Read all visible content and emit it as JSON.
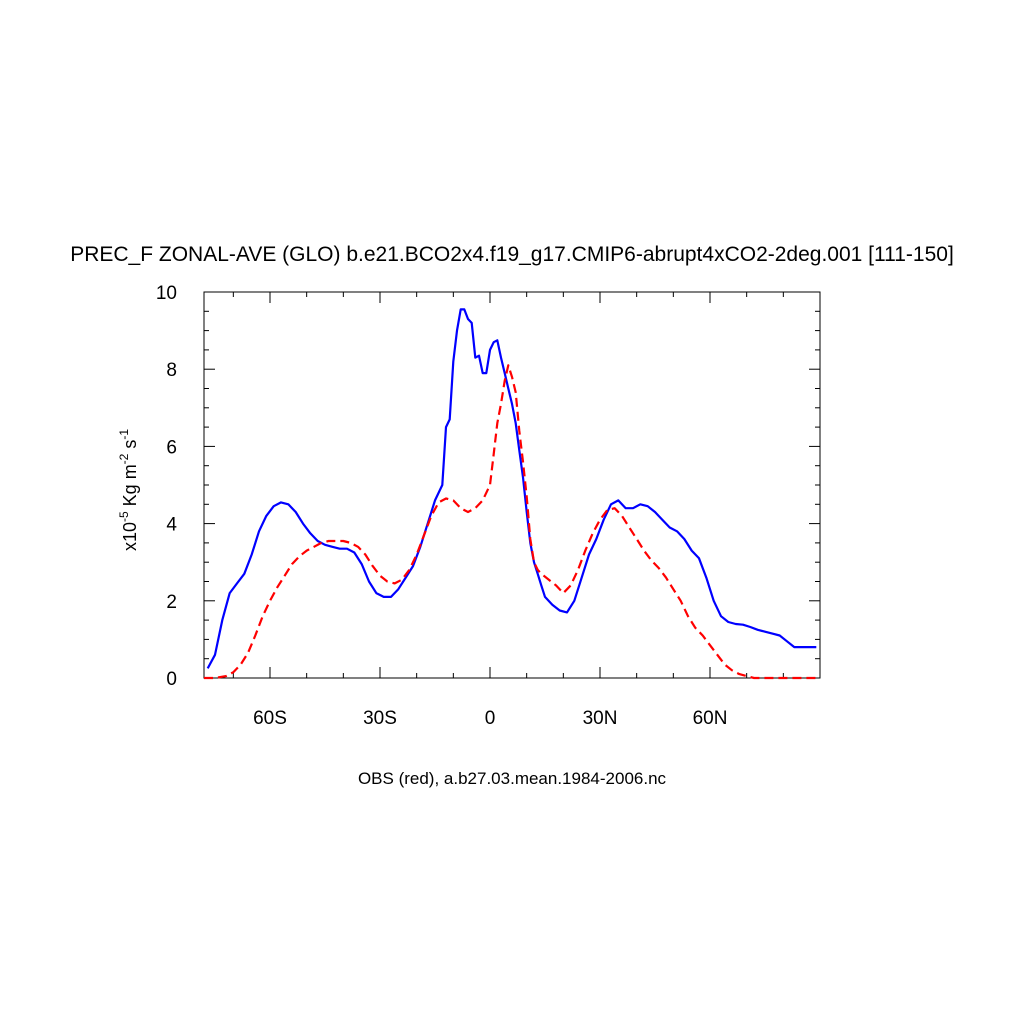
{
  "chart_data": {
    "type": "line",
    "title": "PREC_F ZONAL-AVE (GLO) b.e21.BCO2x4.f19_g17.CMIP6-abrupt4xCO2-2deg.001 [111-150]",
    "ylabel": {
      "prefix": "x10",
      "exp1": "-5",
      "mid1": " Kg m",
      "exp2": "-2",
      "mid2": " s",
      "exp3": "-1"
    },
    "footer": "OBS (red), a.b27.03.mean.1984-2006.nc",
    "xlim": [
      -78,
      90
    ],
    "ylim": [
      0,
      10
    ],
    "x_ticks": [
      {
        "value": -60,
        "label": "60S"
      },
      {
        "value": -30,
        "label": "30S"
      },
      {
        "value": 0,
        "label": "0"
      },
      {
        "value": 30,
        "label": "30N"
      },
      {
        "value": 60,
        "label": "60N"
      }
    ],
    "y_ticks": [
      {
        "value": 0,
        "label": "0"
      },
      {
        "value": 2,
        "label": "2"
      },
      {
        "value": 4,
        "label": "4"
      },
      {
        "value": 6,
        "label": "6"
      },
      {
        "value": 8,
        "label": "8"
      },
      {
        "value": 10,
        "label": "10"
      }
    ],
    "series": [
      {
        "color": "#0000ff",
        "dash": "solid",
        "x": [
          -77,
          -75,
          -73,
          -71,
          -69,
          -67,
          -65,
          -63,
          -61,
          -59,
          -57,
          -55,
          -53,
          -51,
          -49,
          -47,
          -45,
          -43,
          -41,
          -39,
          -37,
          -35,
          -33,
          -31,
          -29,
          -27,
          -25,
          -23,
          -21,
          -19,
          -17,
          -15,
          -13,
          -12,
          -11,
          -10,
          -9,
          -8,
          -7,
          -6,
          -5,
          -4,
          -3,
          -2,
          -1,
          0,
          1,
          2,
          3,
          4,
          5,
          6,
          7,
          8,
          9,
          10,
          11,
          12,
          13,
          14,
          15,
          17,
          19,
          21,
          23,
          25,
          27,
          29,
          31,
          33,
          35,
          37,
          39,
          41,
          43,
          45,
          47,
          49,
          51,
          53,
          55,
          57,
          59,
          61,
          63,
          65,
          67,
          69,
          71,
          73,
          75,
          77,
          79,
          81,
          83,
          85,
          87,
          89
        ],
        "y": [
          0.25,
          0.6,
          1.5,
          2.2,
          2.45,
          2.7,
          3.2,
          3.8,
          4.2,
          4.45,
          4.55,
          4.5,
          4.3,
          4.0,
          3.75,
          3.55,
          3.45,
          3.4,
          3.35,
          3.35,
          3.25,
          2.95,
          2.5,
          2.2,
          2.1,
          2.1,
          2.3,
          2.6,
          2.9,
          3.4,
          4.0,
          4.6,
          5.0,
          6.5,
          6.7,
          8.2,
          9.0,
          9.55,
          9.55,
          9.3,
          9.2,
          8.3,
          8.35,
          7.9,
          7.9,
          8.5,
          8.7,
          8.75,
          8.3,
          7.9,
          7.5,
          7.1,
          6.6,
          5.9,
          5.2,
          4.3,
          3.5,
          3.0,
          2.7,
          2.4,
          2.1,
          1.9,
          1.75,
          1.7,
          2.0,
          2.6,
          3.2,
          3.6,
          4.1,
          4.5,
          4.6,
          4.4,
          4.4,
          4.5,
          4.45,
          4.3,
          4.1,
          3.9,
          3.8,
          3.6,
          3.3,
          3.1,
          2.6,
          2.0,
          1.6,
          1.45,
          1.4,
          1.38,
          1.32,
          1.25,
          1.2,
          1.15,
          1.1,
          0.95,
          0.8,
          0.8,
          0.8,
          0.8
        ]
      },
      {
        "color": "#ff0000",
        "dash": "dashed",
        "x": [
          -78,
          -75,
          -72,
          -70,
          -68,
          -66,
          -64,
          -62,
          -60,
          -58,
          -56,
          -54,
          -52,
          -50,
          -48,
          -46,
          -44,
          -42,
          -40,
          -38,
          -36,
          -34,
          -32,
          -30,
          -28,
          -26,
          -24,
          -22,
          -20,
          -18,
          -16,
          -14,
          -12,
          -10,
          -8,
          -6,
          -4,
          -2,
          0,
          1,
          2,
          3,
          4,
          5,
          6,
          7,
          8,
          9,
          10,
          11,
          12,
          13,
          14,
          16,
          18,
          20,
          22,
          24,
          26,
          28,
          30,
          32,
          34,
          36,
          38,
          40,
          42,
          44,
          46,
          48,
          50,
          52,
          54,
          56,
          58,
          60,
          62,
          64,
          66,
          68,
          70,
          72,
          74,
          76,
          78,
          80,
          82,
          84,
          86,
          88,
          90
        ],
        "y": [
          0.0,
          0.0,
          0.05,
          0.15,
          0.35,
          0.65,
          1.1,
          1.6,
          2.0,
          2.35,
          2.65,
          2.95,
          3.15,
          3.3,
          3.4,
          3.5,
          3.55,
          3.55,
          3.55,
          3.5,
          3.4,
          3.2,
          2.9,
          2.65,
          2.5,
          2.45,
          2.55,
          2.8,
          3.2,
          3.7,
          4.2,
          4.55,
          4.65,
          4.6,
          4.4,
          4.3,
          4.4,
          4.6,
          5.0,
          5.8,
          6.6,
          7.1,
          7.7,
          8.1,
          7.8,
          7.4,
          6.4,
          5.6,
          4.7,
          3.6,
          3.0,
          2.8,
          2.7,
          2.55,
          2.4,
          2.2,
          2.4,
          2.8,
          3.3,
          3.75,
          4.1,
          4.35,
          4.4,
          4.2,
          3.9,
          3.6,
          3.3,
          3.05,
          2.85,
          2.6,
          2.3,
          2.0,
          1.6,
          1.3,
          1.1,
          0.85,
          0.6,
          0.35,
          0.2,
          0.1,
          0.05,
          0.0,
          0.0,
          0.0,
          0.0,
          0.0,
          0.0,
          0.0,
          0.0,
          0.0,
          0.0
        ]
      }
    ]
  }
}
